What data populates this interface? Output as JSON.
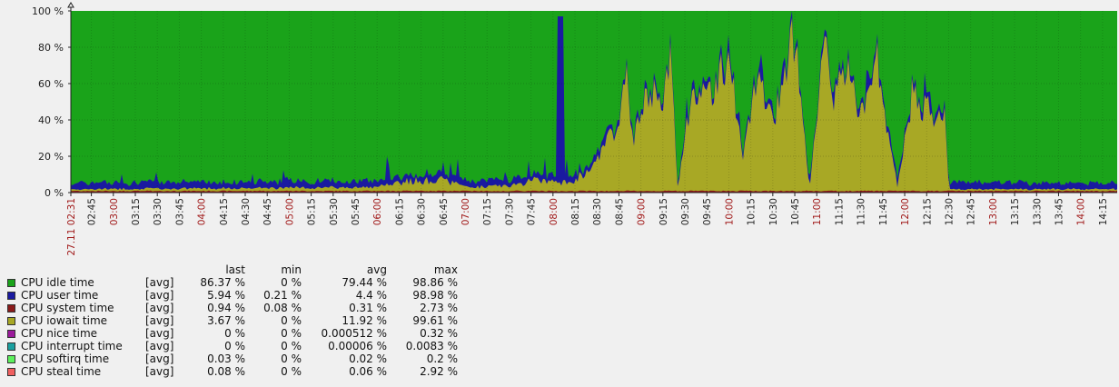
{
  "chart_data": {
    "type": "area",
    "stacked": true,
    "ylim": [
      0,
      100
    ],
    "y_ticks": [
      "0 %",
      "20 %",
      "40 %",
      "60 %",
      "80 %",
      "100 %"
    ],
    "grid": true,
    "x_time_range": [
      "27.11 02:31",
      "14:25"
    ],
    "x_ticks": [
      {
        "label": "27.11 02:31",
        "major": true
      },
      {
        "label": "02:45",
        "major": false
      },
      {
        "label": "03:00",
        "major": true
      },
      {
        "label": "03:15",
        "major": false
      },
      {
        "label": "03:30",
        "major": false
      },
      {
        "label": "03:45",
        "major": false
      },
      {
        "label": "04:00",
        "major": true
      },
      {
        "label": "04:15",
        "major": false
      },
      {
        "label": "04:30",
        "major": false
      },
      {
        "label": "04:45",
        "major": false
      },
      {
        "label": "05:00",
        "major": true
      },
      {
        "label": "05:15",
        "major": false
      },
      {
        "label": "05:30",
        "major": false
      },
      {
        "label": "05:45",
        "major": false
      },
      {
        "label": "06:00",
        "major": true
      },
      {
        "label": "06:15",
        "major": false
      },
      {
        "label": "06:30",
        "major": false
      },
      {
        "label": "06:45",
        "major": false
      },
      {
        "label": "07:00",
        "major": true
      },
      {
        "label": "07:15",
        "major": false
      },
      {
        "label": "07:30",
        "major": false
      },
      {
        "label": "07:45",
        "major": false
      },
      {
        "label": "08:00",
        "major": true
      },
      {
        "label": "08:15",
        "major": false
      },
      {
        "label": "08:30",
        "major": false
      },
      {
        "label": "08:45",
        "major": false
      },
      {
        "label": "09:00",
        "major": true
      },
      {
        "label": "09:15",
        "major": false
      },
      {
        "label": "09:30",
        "major": false
      },
      {
        "label": "09:45",
        "major": false
      },
      {
        "label": "10:00",
        "major": true
      },
      {
        "label": "10:15",
        "major": false
      },
      {
        "label": "10:30",
        "major": false
      },
      {
        "label": "10:45",
        "major": false
      },
      {
        "label": "11:00",
        "major": true
      },
      {
        "label": "11:15",
        "major": false
      },
      {
        "label": "11:30",
        "major": false
      },
      {
        "label": "11:45",
        "major": false
      },
      {
        "label": "12:00",
        "major": true
      },
      {
        "label": "12:15",
        "major": false
      },
      {
        "label": "12:30",
        "major": false
      },
      {
        "label": "12:45",
        "major": false
      },
      {
        "label": "13:00",
        "major": true
      },
      {
        "label": "13:15",
        "major": false
      },
      {
        "label": "13:30",
        "major": false
      },
      {
        "label": "13:45",
        "major": false
      },
      {
        "label": "14:00",
        "major": true
      },
      {
        "label": "14:15",
        "major": false
      }
    ],
    "series_colors": {
      "idle": "#1aa31a",
      "user": "#1a1aa0",
      "system": "#8b1a1a",
      "iowait": "#a8a825"
    },
    "iowait_profile": [
      {
        "t": "02:31",
        "v": 1
      },
      {
        "t": "06:00",
        "v": 2
      },
      {
        "t": "06:15",
        "v": 5
      },
      {
        "t": "06:45",
        "v": 6
      },
      {
        "t": "07:00",
        "v": 2
      },
      {
        "t": "07:30",
        "v": 3
      },
      {
        "t": "07:50",
        "v": 6
      },
      {
        "t": "08:05",
        "v": 4
      },
      {
        "t": "08:20",
        "v": 8
      },
      {
        "t": "08:30",
        "v": 20
      },
      {
        "t": "08:45",
        "v": 40
      },
      {
        "t": "08:50",
        "v": 70
      },
      {
        "t": "08:55",
        "v": 30
      },
      {
        "t": "09:05",
        "v": 58
      },
      {
        "t": "09:15",
        "v": 55
      },
      {
        "t": "09:20",
        "v": 86
      },
      {
        "t": "09:25",
        "v": 2
      },
      {
        "t": "09:35",
        "v": 60
      },
      {
        "t": "09:45",
        "v": 55
      },
      {
        "t": "10:00",
        "v": 80
      },
      {
        "t": "10:10",
        "v": 20
      },
      {
        "t": "10:20",
        "v": 70
      },
      {
        "t": "10:30",
        "v": 40
      },
      {
        "t": "10:40",
        "v": 75
      },
      {
        "t": "10:45",
        "v": 95
      },
      {
        "t": "10:55",
        "v": 1
      },
      {
        "t": "11:05",
        "v": 97
      },
      {
        "t": "11:10",
        "v": 50
      },
      {
        "t": "11:20",
        "v": 80
      },
      {
        "t": "11:30",
        "v": 45
      },
      {
        "t": "11:40",
        "v": 85
      },
      {
        "t": "11:45",
        "v": 55
      },
      {
        "t": "11:55",
        "v": 2
      },
      {
        "t": "12:05",
        "v": 57
      },
      {
        "t": "12:22",
        "v": 43
      },
      {
        "t": "12:28",
        "v": 45
      },
      {
        "t": "12:30",
        "v": 1
      },
      {
        "t": "14:25",
        "v": 1
      }
    ]
  },
  "legend": {
    "headers": {
      "last": "last",
      "min": "min",
      "avg": "avg",
      "max": "max"
    },
    "items": [
      {
        "name": "CPU idle time",
        "color": "#1aa31a",
        "fn": "[avg]",
        "last": "86.37 %",
        "min": "0 %",
        "avg": "79.44 %",
        "max": "98.86 %"
      },
      {
        "name": "CPU user time",
        "color": "#1a1aa0",
        "fn": "[avg]",
        "last": "5.94 %",
        "min": "0.21 %",
        "avg": "4.4 %",
        "max": "98.98 %"
      },
      {
        "name": "CPU system time",
        "color": "#8b1a1a",
        "fn": "[avg]",
        "last": "0.94 %",
        "min": "0.08 %",
        "avg": "0.31 %",
        "max": "2.73 %"
      },
      {
        "name": "CPU iowait time",
        "color": "#a8a825",
        "fn": "[avg]",
        "last": "3.67 %",
        "min": "0 %",
        "avg": "11.92 %",
        "max": "99.61 %"
      },
      {
        "name": "CPU nice time",
        "color": "#9b1a9b",
        "fn": "[avg]",
        "last": "0 %",
        "min": "0 %",
        "avg": "0.000512 %",
        "max": "0.32 %"
      },
      {
        "name": "CPU interrupt time",
        "color": "#1aa0a0",
        "fn": "[avg]",
        "last": "0 %",
        "min": "0 %",
        "avg": "0.00006 %",
        "max": "0.0083 %"
      },
      {
        "name": "CPU softirq time",
        "color": "#5cf05c",
        "fn": "[avg]",
        "last": "0.03 %",
        "min": "0 %",
        "avg": "0.02 %",
        "max": "0.2 %"
      },
      {
        "name": "CPU steal time",
        "color": "#f06060",
        "fn": "[avg]",
        "last": "0.08 %",
        "min": "0 %",
        "avg": "0.06 %",
        "max": "2.92 %"
      }
    ]
  }
}
